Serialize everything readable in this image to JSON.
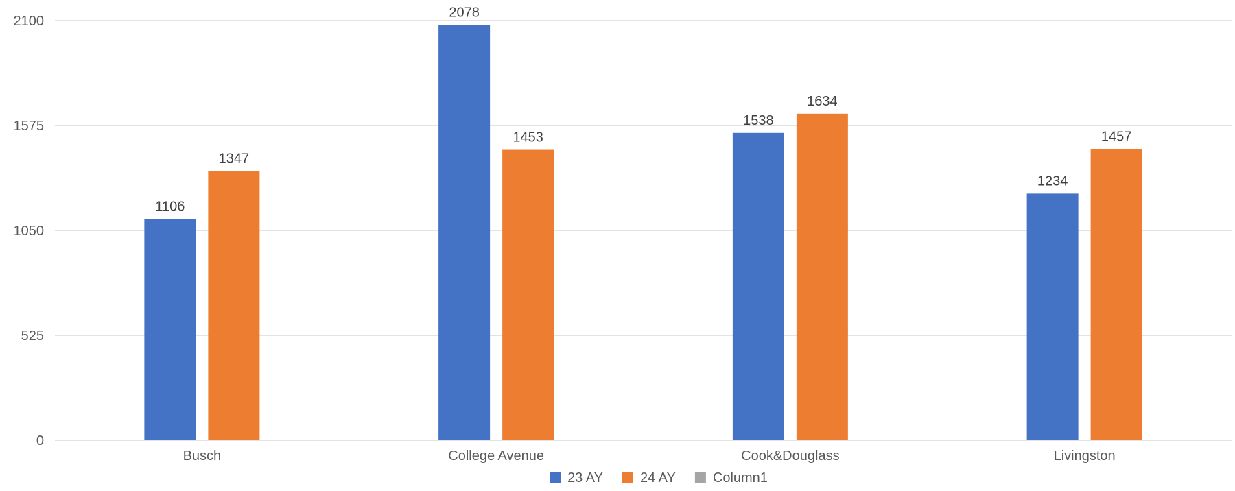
{
  "chart_data": {
    "type": "bar",
    "categories": [
      "Busch",
      "College Avenue",
      "Cook&Douglass",
      "Livingston"
    ],
    "series": [
      {
        "name": "23 AY",
        "values": [
          1106,
          2078,
          1538,
          1234
        ],
        "color": "#4472C4"
      },
      {
        "name": "24 AY",
        "values": [
          1347,
          1453,
          1634,
          1457
        ],
        "color": "#ED7D31"
      }
    ],
    "legend": [
      {
        "name": "23 AY",
        "color": "#4472C4"
      },
      {
        "name": "24 AY",
        "color": "#ED7D31"
      },
      {
        "name": "Column1",
        "color": "#A5A5A5"
      }
    ],
    "yticks": [
      0,
      525,
      1050,
      1575,
      2100
    ],
    "ylim": [
      0,
      2100
    ],
    "title": "",
    "xlabel": "",
    "ylabel": "",
    "grid": true,
    "legend_position": "bottom"
  }
}
